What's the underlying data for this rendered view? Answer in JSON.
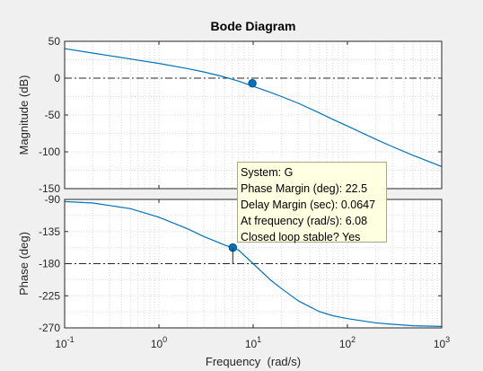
{
  "chart_data": {
    "type": "line",
    "title": "Bode Diagram",
    "xlabel": "Frequency  (rad/s)",
    "xscale": "log",
    "xlim": [
      0.1,
      1000
    ],
    "xticks": [
      {
        "v": 0.1,
        "base": "10",
        "exp": "-1"
      },
      {
        "v": 1,
        "base": "10",
        "exp": "0"
      },
      {
        "v": 10,
        "base": "10",
        "exp": "1"
      },
      {
        "v": 100,
        "base": "10",
        "exp": "2"
      },
      {
        "v": 1000,
        "base": "10",
        "exp": "3"
      }
    ],
    "grid": true,
    "magnitude": {
      "ylabel": "Magnitude (dB)",
      "ylim": [
        -150,
        50
      ],
      "yticks": [
        50,
        0,
        -50,
        -100,
        -150
      ],
      "reference_line": 0,
      "marker": {
        "x": 9.8,
        "y": -7
      },
      "x": [
        0.1,
        0.2,
        0.5,
        1,
        2,
        3,
        5,
        7,
        10,
        15,
        20,
        30,
        50,
        70,
        100,
        200,
        300,
        500,
        1000
      ],
      "y": [
        40,
        34,
        26,
        20,
        13,
        8.4,
        1.5,
        -4,
        -11,
        -19,
        -25,
        -34,
        -47,
        -56,
        -65,
        -83,
        -93,
        -105,
        -120
      ]
    },
    "phase": {
      "ylabel": "Phase (deg)",
      "ylim": [
        -270,
        -90
      ],
      "yticks": [
        -90,
        -135,
        -180,
        -225,
        -270
      ],
      "reference_line": -180,
      "marker": {
        "x": 6.08,
        "y": -157.5
      },
      "x": [
        0.1,
        0.2,
        0.5,
        1,
        2,
        3,
        5,
        7,
        10,
        15,
        20,
        30,
        50,
        70,
        100,
        200,
        300,
        500,
        1000
      ],
      "y": [
        -93,
        -95,
        -103,
        -115,
        -131,
        -142,
        -154,
        -161,
        -180,
        -202,
        -215,
        -232,
        -247,
        -253,
        -257,
        -263,
        -265,
        -267,
        -268
      ]
    }
  },
  "datatip": {
    "lines": [
      "System: G",
      "Phase Margin (deg): 22.5",
      "Delay Margin (sec): 0.0647",
      "At frequency (rad/s): 6.08",
      "Closed loop stable? Yes"
    ]
  },
  "colors": {
    "line": "#0072bd",
    "grid": "#d9d9d9",
    "axes_bg": "#ffffff",
    "figure_bg": "#f0f0f0",
    "text": "#262626",
    "reference": "#262626"
  }
}
